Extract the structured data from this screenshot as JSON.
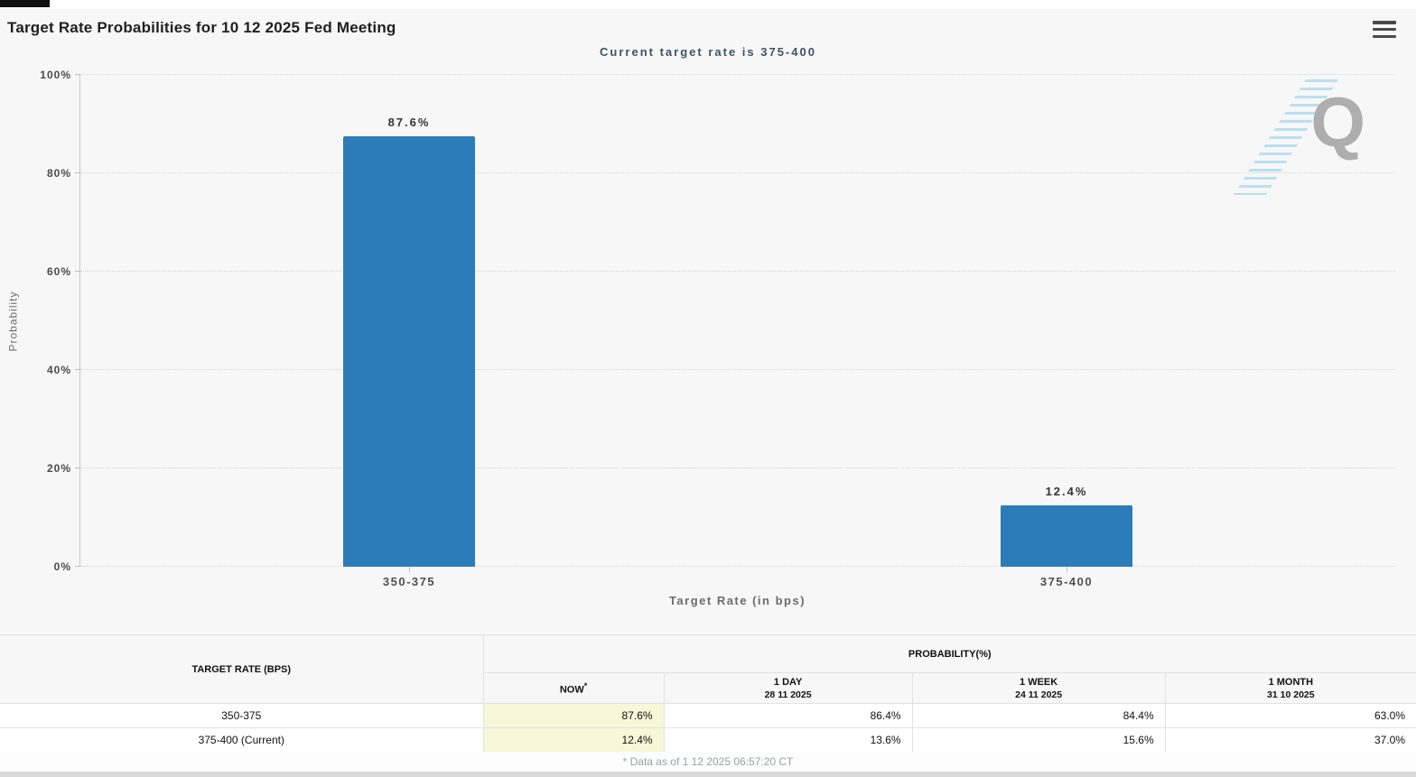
{
  "header": {
    "title": "Target Rate Probabilities for 10 12 2025 Fed Meeting"
  },
  "watermark": {
    "letter": "Q"
  },
  "chart_data": {
    "type": "bar",
    "title": "Target Rate Probabilities for 10 12 2025 Fed Meeting",
    "subtitle": "Current target rate is 375-400",
    "categories": [
      "350-375",
      "375-400"
    ],
    "values": [
      87.6,
      12.4
    ],
    "value_labels": [
      "87.6%",
      "12.4%"
    ],
    "xlabel": "Target Rate (in bps)",
    "ylabel": "Probability",
    "ylim": [
      0,
      100
    ],
    "y_ticks": [
      0,
      20,
      40,
      60,
      80,
      100
    ],
    "y_tick_suffix": "%",
    "grid": "horizontal-dotted",
    "legend": "none",
    "bar_color": "#2b7cb8"
  },
  "table": {
    "col1_header": "TARGET RATE (BPS)",
    "group_header": "PROBABILITY(%)",
    "columns": [
      {
        "label": "NOW",
        "sup": "*",
        "sub": ""
      },
      {
        "label": "1 DAY",
        "sub": "28 11 2025"
      },
      {
        "label": "1 WEEK",
        "sub": "24 11 2025"
      },
      {
        "label": "1 MONTH",
        "sub": "31 10 2025"
      }
    ],
    "rows": [
      {
        "target_rate": "350-375",
        "now": "87.6%",
        "day": "86.4%",
        "week": "84.4%",
        "month": "63.0%"
      },
      {
        "target_rate": "375-400 (Current)",
        "now": "12.4%",
        "day": "13.6%",
        "week": "15.6%",
        "month": "37.0%"
      }
    ]
  },
  "footer": {
    "note": "* Data as of 1 12 2025 06:57:20 CT"
  }
}
